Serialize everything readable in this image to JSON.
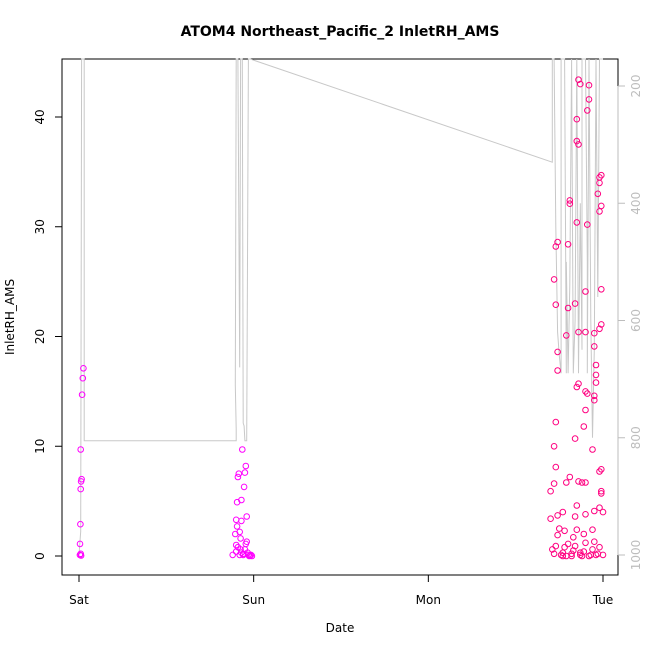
{
  "chart_data": {
    "type": "scatter",
    "title": "ATOM4 Northeast_Pacific_2 InletRH_AMS",
    "xlabel": "Date",
    "ylabel": "InletRH_AMS",
    "x_tick_labels": [
      "Sat",
      "Sun",
      "Mon",
      "Tue"
    ],
    "x_range_days": [
      0,
      3
    ],
    "ylim": [
      0,
      45
    ],
    "y_ticks": [
      0,
      10,
      20,
      30,
      40
    ],
    "y2_ticks": [
      200,
      400,
      600,
      800,
      1000
    ],
    "y2_range": [
      1000,
      110
    ],
    "y2_reversed": true,
    "grid": false,
    "colors": {
      "points_low": "#ff00ff",
      "points_high": "#ff0080",
      "line": "#c8c8c8",
      "right_axis": "#bdbdbd"
    },
    "series": [
      {
        "points": [
          [
            0.005,
            0.1
          ],
          [
            0.01,
            0.2
          ],
          [
            0.012,
            0.05
          ],
          [
            0.006,
            1.1
          ],
          [
            0.008,
            2.9
          ],
          [
            0.01,
            6.1
          ],
          [
            0.012,
            6.8
          ],
          [
            0.015,
            7.0
          ],
          [
            0.01,
            9.7
          ],
          [
            0.018,
            14.7
          ],
          [
            0.022,
            16.2
          ],
          [
            0.025,
            17.1
          ],
          [
            0.88,
            0.1
          ],
          [
            0.9,
            0.4
          ],
          [
            0.9,
            1.0
          ],
          [
            0.895,
            2.0
          ],
          [
            0.9,
            3.3
          ],
          [
            0.905,
            4.9
          ],
          [
            0.91,
            7.2
          ],
          [
            0.915,
            7.5
          ],
          [
            0.92,
            2.2
          ],
          [
            0.925,
            1.6
          ],
          [
            0.93,
            3.2
          ],
          [
            0.94,
            0.2
          ],
          [
            0.95,
            0.6
          ],
          [
            0.92,
            0.1
          ],
          [
            0.93,
            0.3
          ],
          [
            0.94,
            0.1
          ],
          [
            0.91,
            0.8
          ],
          [
            0.93,
            5.1
          ],
          [
            0.945,
            6.3
          ],
          [
            0.95,
            7.6
          ],
          [
            0.955,
            8.2
          ],
          [
            0.935,
            9.7
          ],
          [
            0.96,
            3.6
          ],
          [
            0.96,
            1.3
          ],
          [
            0.965,
            0.3
          ],
          [
            0.97,
            0.1
          ],
          [
            0.98,
            0.05
          ],
          [
            0.985,
            0.1
          ],
          [
            0.99,
            0.0
          ],
          [
            0.975,
            0.0
          ],
          [
            0.955,
            1.1
          ],
          [
            0.925,
            0.6
          ],
          [
            0.905,
            2.7
          ],
          [
            2.7,
            3.4
          ],
          [
            2.7,
            5.9
          ],
          [
            2.72,
            0.2
          ],
          [
            2.71,
            0.6
          ],
          [
            2.73,
            0.9
          ],
          [
            2.74,
            1.9
          ],
          [
            2.75,
            2.5
          ],
          [
            2.72,
            6.6
          ],
          [
            2.74,
            3.7
          ],
          [
            2.73,
            8.1
          ],
          [
            2.72,
            10.0
          ],
          [
            2.73,
            12.2
          ],
          [
            2.74,
            16.9
          ],
          [
            2.74,
            18.6
          ],
          [
            2.73,
            22.9
          ],
          [
            2.72,
            25.2
          ],
          [
            2.73,
            28.2
          ],
          [
            2.74,
            28.6
          ],
          [
            2.76,
            0.1
          ],
          [
            2.77,
            0.3
          ],
          [
            2.78,
            0.8
          ],
          [
            2.79,
            0.0
          ],
          [
            2.8,
            1.1
          ],
          [
            2.78,
            2.3
          ],
          [
            2.77,
            4.0
          ],
          [
            2.79,
            6.7
          ],
          [
            2.81,
            7.2
          ],
          [
            2.79,
            20.1
          ],
          [
            2.8,
            22.6
          ],
          [
            2.8,
            28.4
          ],
          [
            2.81,
            32.4
          ],
          [
            2.81,
            32.1
          ],
          [
            2.82,
            0.2
          ],
          [
            2.83,
            0.5
          ],
          [
            2.84,
            0.9
          ],
          [
            2.83,
            1.7
          ],
          [
            2.85,
            2.4
          ],
          [
            2.84,
            3.6
          ],
          [
            2.85,
            4.6
          ],
          [
            2.86,
            6.8
          ],
          [
            2.87,
            0.1
          ],
          [
            2.84,
            10.7
          ],
          [
            2.85,
            15.4
          ],
          [
            2.86,
            15.7
          ],
          [
            2.86,
            20.4
          ],
          [
            2.84,
            23.0
          ],
          [
            2.85,
            30.4
          ],
          [
            2.85,
            37.8
          ],
          [
            2.86,
            37.5
          ],
          [
            2.85,
            39.8
          ],
          [
            2.86,
            43.4
          ],
          [
            2.87,
            43.0
          ],
          [
            2.88,
            0.0
          ],
          [
            2.89,
            0.4
          ],
          [
            2.9,
            1.2
          ],
          [
            2.89,
            2.0
          ],
          [
            2.9,
            3.8
          ],
          [
            2.88,
            6.7
          ],
          [
            2.9,
            6.7
          ],
          [
            2.89,
            11.8
          ],
          [
            2.9,
            13.3
          ],
          [
            2.9,
            15.0
          ],
          [
            2.91,
            14.8
          ],
          [
            2.9,
            20.4
          ],
          [
            2.9,
            24.1
          ],
          [
            2.91,
            30.2
          ],
          [
            2.91,
            40.6
          ],
          [
            2.92,
            41.6
          ],
          [
            2.92,
            42.9
          ],
          [
            2.93,
            0.1
          ],
          [
            2.94,
            0.6
          ],
          [
            2.95,
            1.3
          ],
          [
            2.94,
            2.4
          ],
          [
            2.95,
            4.1
          ],
          [
            2.94,
            9.7
          ],
          [
            2.95,
            14.2
          ],
          [
            2.95,
            14.6
          ],
          [
            2.96,
            16.5
          ],
          [
            2.96,
            17.4
          ],
          [
            2.95,
            19.1
          ],
          [
            2.95,
            20.3
          ],
          [
            2.96,
            15.8
          ],
          [
            2.97,
            0.2
          ],
          [
            2.98,
            0.8
          ],
          [
            2.98,
            4.4
          ],
          [
            2.99,
            5.7
          ],
          [
            2.99,
            5.9
          ],
          [
            2.98,
            7.7
          ],
          [
            2.99,
            7.9
          ],
          [
            2.98,
            20.7
          ],
          [
            2.99,
            21.1
          ],
          [
            2.98,
            31.4
          ],
          [
            2.99,
            31.9
          ],
          [
            2.97,
            33.0
          ],
          [
            2.98,
            34.0
          ],
          [
            2.98,
            34.5
          ],
          [
            2.99,
            34.7
          ],
          [
            2.99,
            24.3
          ],
          [
            3.0,
            4.0
          ],
          [
            3.0,
            0.1
          ],
          [
            2.96,
            0.1
          ],
          [
            2.92,
            0.0
          ],
          [
            2.87,
            0.3
          ],
          [
            2.82,
            0.0
          ],
          [
            2.77,
            0.0
          ]
        ]
      },
      {
        "axis": "right",
        "points": [
          [
            0.0,
            1000
          ],
          [
            0.01,
            960
          ],
          [
            0.015,
            110
          ],
          [
            0.03,
            110
          ],
          [
            0.03,
            805
          ],
          [
            0.9,
            805
          ],
          [
            0.9,
            785
          ],
          [
            0.895,
            710
          ],
          [
            0.9,
            110
          ],
          [
            0.91,
            110
          ],
          [
            0.92,
            680
          ],
          [
            0.925,
            110
          ],
          [
            0.935,
            110
          ],
          [
            0.94,
            775
          ],
          [
            0.945,
            780
          ],
          [
            0.95,
            805
          ],
          [
            0.96,
            805
          ],
          [
            0.97,
            110
          ],
          [
            0.98,
            120
          ],
          [
            2.71,
            330
          ],
          [
            2.71,
            110
          ],
          [
            2.72,
            110
          ],
          [
            2.73,
            440
          ],
          [
            2.74,
            620
          ],
          [
            2.75,
            660
          ],
          [
            2.76,
            690
          ],
          [
            2.76,
            110
          ],
          [
            2.77,
            150
          ],
          [
            2.78,
            110
          ],
          [
            2.79,
            690
          ],
          [
            2.79,
            500
          ],
          [
            2.8,
            690
          ],
          [
            2.81,
            540
          ],
          [
            2.82,
            110
          ],
          [
            2.83,
            690
          ],
          [
            2.84,
            600
          ],
          [
            2.85,
            110
          ],
          [
            2.86,
            690
          ],
          [
            2.87,
            400
          ],
          [
            2.88,
            650
          ],
          [
            2.88,
            110
          ],
          [
            2.9,
            110
          ],
          [
            2.91,
            500
          ],
          [
            2.91,
            690
          ],
          [
            2.92,
            110
          ],
          [
            2.93,
            600
          ],
          [
            2.94,
            800
          ],
          [
            2.95,
            650
          ],
          [
            2.96,
            110
          ],
          [
            2.97,
            560
          ],
          [
            2.98,
            110
          ],
          [
            2.99,
            110
          ],
          [
            3.0,
            110
          ]
        ]
      }
    ]
  }
}
